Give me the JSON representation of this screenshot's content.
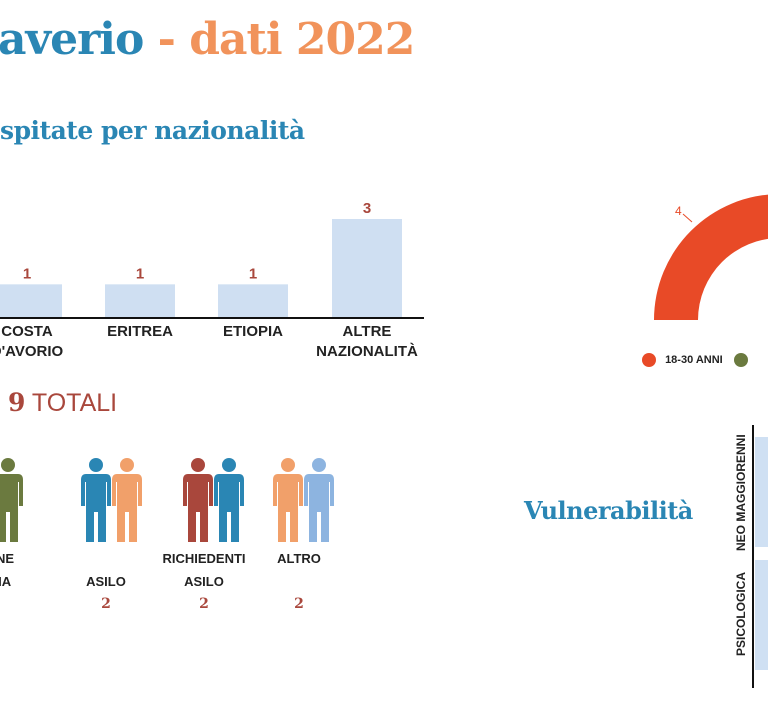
{
  "header": {
    "title_part1": "averio",
    "title_sep": " - ",
    "title_part2": "dati 2022"
  },
  "section_nationality": {
    "title": "spitate per nazionalità"
  },
  "chart_data": [
    {
      "type": "bar",
      "title": "spitate per nazionalità",
      "categories": [
        "COSTA D'AVORIO",
        "ERITREA",
        "ETIOPIA",
        "ALTRE NAZIONALITÀ"
      ],
      "category_lines": [
        [
          "COSTA",
          "D'AVORIO"
        ],
        [
          "ERITREA"
        ],
        [
          "ETIOPIA"
        ],
        [
          "ALTRE",
          "NAZIONALITÀ"
        ]
      ],
      "values": [
        1,
        1,
        1,
        3
      ],
      "bar_color": "#cfdff2",
      "label_color": "#a9473c"
    },
    {
      "type": "pie",
      "shape": "half-donut",
      "series": [
        {
          "name": "18-30 ANNI",
          "value": 4,
          "color": "#e84a27"
        }
      ]
    },
    {
      "type": "bar",
      "orientation": "horizontal",
      "title": "Vulnerabilità",
      "categories": [
        "NEO MAGGIORENNI",
        "PSICOLOGICA"
      ],
      "bar_color": "#cfe0f3"
    }
  ],
  "totals": {
    "number": "9",
    "label": "TOTALI"
  },
  "status_categories": [
    {
      "label_lines": [
        "ONE",
        "RIA"
      ],
      "value": "",
      "colors": [
        "#6b7a3f"
      ]
    },
    {
      "label_lines": [
        "",
        "ASILO"
      ],
      "value": "2",
      "colors": [
        "#2a86b4",
        "#f1a06a"
      ]
    },
    {
      "label_lines": [
        "RICHIEDENTI",
        "ASILO"
      ],
      "value": "2",
      "colors": [
        "#a9473c",
        "#2a86b4"
      ]
    },
    {
      "label_lines": [
        "ALTRO",
        ""
      ],
      "value": "2",
      "colors": [
        "#f1a06a",
        "#8db4e0"
      ]
    }
  ],
  "age_donut": {
    "value_label": "4",
    "legend": [
      {
        "label": "18-30 ANNI",
        "color": "#e84a27"
      },
      {
        "label": "",
        "color": "#6b7a3f"
      }
    ]
  },
  "vulnerability": {
    "title": "Vulnerabilità",
    "categories": [
      "NEO MAGGIORENNI",
      "PSICOLOGICA"
    ]
  },
  "colors": {
    "blue": "#2a86b4",
    "orange": "#f1935b",
    "rust": "#a9473c"
  }
}
